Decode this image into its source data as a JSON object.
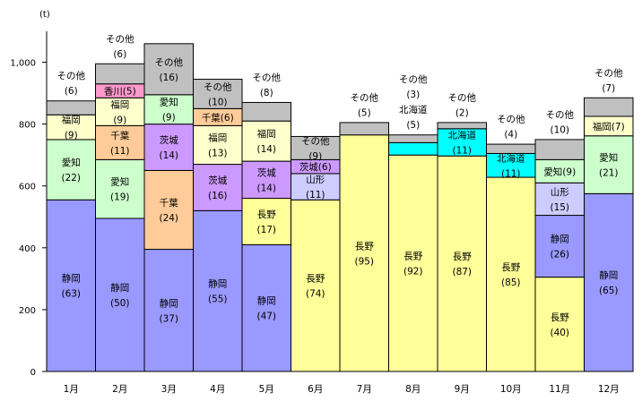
{
  "chart_data": {
    "type": "bar",
    "subtype": "stacked",
    "unit_label": "(t)",
    "ylim": [
      0,
      1100
    ],
    "yticks": [
      0,
      200,
      400,
      600,
      800,
      1000
    ],
    "ytick_labels": [
      "0",
      "200",
      "400",
      "600",
      "800",
      "1,000"
    ],
    "grid": false,
    "colors": {
      "静岡": "#9999ff",
      "長野": "#ffff99",
      "愛知": "#ccffcc",
      "福岡": "#ffffcc",
      "千葉": "#ffcc99",
      "茨城": "#cc99ff",
      "香川": "#ff99cc",
      "山形": "#ccccff",
      "北海道": "#00ffff",
      "その他": "#c0c0c0"
    },
    "months": [
      {
        "label": "1月",
        "segments": [
          {
            "name": "静岡",
            "value": 555,
            "text": "静岡",
            "pct": "(63)"
          },
          {
            "name": "愛知",
            "value": 195,
            "text": "愛知",
            "pct": "(22)"
          },
          {
            "name": "福岡",
            "value": 80,
            "text": "福岡",
            "pct": "(9)"
          },
          {
            "name": "その他",
            "value": 45,
            "text": "その他",
            "pct": "(6)",
            "label_above": true
          }
        ]
      },
      {
        "label": "2月",
        "segments": [
          {
            "name": "静岡",
            "value": 495,
            "text": "静岡",
            "pct": "(50)"
          },
          {
            "name": "愛知",
            "value": 190,
            "text": "愛知",
            "pct": "(19)"
          },
          {
            "name": "千葉",
            "value": 110,
            "text": "千葉",
            "pct": "(11)"
          },
          {
            "name": "福岡",
            "value": 90,
            "text": "福岡",
            "pct": "(9)"
          },
          {
            "name": "香川",
            "value": 45,
            "text": "香川(5)",
            "pct": ""
          },
          {
            "name": "その他",
            "value": 65,
            "text": "その他",
            "pct": "(6)",
            "label_above": true
          }
        ]
      },
      {
        "label": "3月",
        "segments": [
          {
            "name": "静岡",
            "value": 395,
            "text": "静岡",
            "pct": "(37)"
          },
          {
            "name": "千葉",
            "value": 255,
            "text": "千葉",
            "pct": "(24)"
          },
          {
            "name": "茨城",
            "value": 150,
            "text": "茨城",
            "pct": "(14)"
          },
          {
            "name": "愛知",
            "value": 95,
            "text": "愛知",
            "pct": "(9)"
          },
          {
            "name": "その他",
            "value": 165,
            "text": "その他",
            "pct": "(16)"
          }
        ]
      },
      {
        "label": "4月",
        "segments": [
          {
            "name": "静岡",
            "value": 520,
            "text": "静岡",
            "pct": "(55)"
          },
          {
            "name": "茨城",
            "value": 150,
            "text": "茨城",
            "pct": "(16)"
          },
          {
            "name": "福岡",
            "value": 125,
            "text": "福岡",
            "pct": "(13)"
          },
          {
            "name": "千葉",
            "value": 55,
            "text": "千葉(6)",
            "pct": ""
          },
          {
            "name": "その他",
            "value": 95,
            "text": "その他",
            "pct": "(10)"
          }
        ]
      },
      {
        "label": "5月",
        "segments": [
          {
            "name": "静岡",
            "value": 410,
            "text": "静岡",
            "pct": "(47)"
          },
          {
            "name": "長野",
            "value": 150,
            "text": "長野",
            "pct": "(17)"
          },
          {
            "name": "茨城",
            "value": 120,
            "text": "茨城",
            "pct": "(14)"
          },
          {
            "name": "福岡",
            "value": 130,
            "text": "福岡",
            "pct": "(14)"
          },
          {
            "name": "その他",
            "value": 60,
            "text": "その他",
            "pct": "(8)",
            "label_above": true
          }
        ]
      },
      {
        "label": "6月",
        "segments": [
          {
            "name": "長野",
            "value": 555,
            "text": "長野",
            "pct": "(74)"
          },
          {
            "name": "山形",
            "value": 85,
            "text": "山形",
            "pct": "(11)"
          },
          {
            "name": "茨城",
            "value": 45,
            "text": "茨城(6)",
            "pct": ""
          },
          {
            "name": "その他",
            "value": 75,
            "text": "その他",
            "pct": "(9)"
          }
        ]
      },
      {
        "label": "7月",
        "segments": [
          {
            "name": "長野",
            "value": 765,
            "text": "長野",
            "pct": "(95)"
          },
          {
            "name": "その他",
            "value": 40,
            "text": "その他",
            "pct": "(5)",
            "label_above": true
          }
        ]
      },
      {
        "label": "8月",
        "segments": [
          {
            "name": "長野",
            "value": 700,
            "text": "長野",
            "pct": "(92)"
          },
          {
            "name": "北海道",
            "value": 40,
            "text": "北海道",
            "pct": "(5)",
            "label_above": true
          },
          {
            "name": "その他",
            "value": 25,
            "text": "その他",
            "pct": "(3)",
            "label_above": true
          }
        ]
      },
      {
        "label": "9月",
        "segments": [
          {
            "name": "長野",
            "value": 697,
            "text": "長野",
            "pct": "(87)"
          },
          {
            "name": "北海道",
            "value": 88,
            "text": "北海道",
            "pct": "(11)"
          },
          {
            "name": "その他",
            "value": 20,
            "text": "その他",
            "pct": "(2)",
            "label_above": true
          }
        ]
      },
      {
        "label": "10月",
        "segments": [
          {
            "name": "長野",
            "value": 628,
            "text": "長野",
            "pct": "(85)"
          },
          {
            "name": "北海道",
            "value": 77,
            "text": "北海道",
            "pct": "(11)"
          },
          {
            "name": "その他",
            "value": 30,
            "text": "その他",
            "pct": "(4)",
            "label_above": true
          }
        ]
      },
      {
        "label": "11月",
        "segments": [
          {
            "name": "長野",
            "value": 305,
            "text": "長野",
            "pct": "(40)"
          },
          {
            "name": "静岡",
            "value": 200,
            "text": "静岡",
            "pct": "(26)"
          },
          {
            "name": "山形",
            "value": 105,
            "text": "山形",
            "pct": "(15)"
          },
          {
            "name": "愛知",
            "value": 75,
            "text": "愛知(9)",
            "pct": ""
          },
          {
            "name": "その他",
            "value": 65,
            "text": "その他",
            "pct": "(10)",
            "label_above": true
          }
        ]
      },
      {
        "label": "12月",
        "segments": [
          {
            "name": "静岡",
            "value": 575,
            "text": "静岡",
            "pct": "(65)"
          },
          {
            "name": "愛知",
            "value": 187,
            "text": "愛知",
            "pct": "(21)"
          },
          {
            "name": "福岡",
            "value": 63,
            "text": "福岡(7)",
            "pct": ""
          },
          {
            "name": "その他",
            "value": 60,
            "text": "その他",
            "pct": "(7)",
            "label_above": true
          }
        ]
      }
    ]
  }
}
